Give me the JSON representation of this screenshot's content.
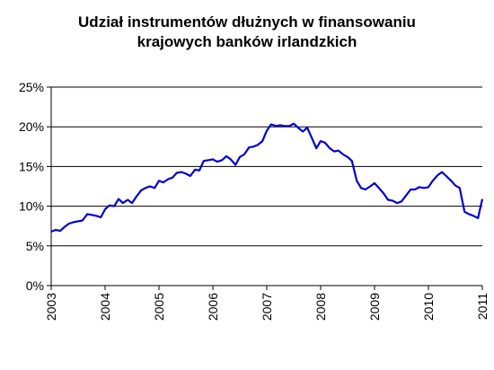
{
  "chart_data": {
    "type": "line",
    "title_lines": [
      "Udział instrumentów dłużnych w finansowaniu",
      "krajowych banków irlandzkich"
    ],
    "xlabel": "",
    "ylabel": "",
    "ylim": [
      0,
      25
    ],
    "xlim": [
      2003,
      2011
    ],
    "y_ticks": [
      0,
      5,
      10,
      15,
      20,
      25
    ],
    "y_tick_labels": [
      "0%",
      "5%",
      "10%",
      "15%",
      "20%",
      "25%"
    ],
    "x_ticks": [
      2003,
      2004,
      2005,
      2006,
      2007,
      2008,
      2009,
      2010,
      2011
    ],
    "x_tick_labels": [
      "2003",
      "2004",
      "2005",
      "2006",
      "2007",
      "2008",
      "2009",
      "2010",
      "2011"
    ],
    "grid": "horizontal",
    "line_color": "#0000cc",
    "series": [
      {
        "x": [
          2003.0,
          2003.08,
          2003.17,
          2003.25,
          2003.33,
          2003.42,
          2003.5,
          2003.58,
          2003.67,
          2003.75,
          2003.83,
          2003.92,
          2004.0,
          2004.08,
          2004.17,
          2004.25,
          2004.33,
          2004.42,
          2004.5,
          2004.58,
          2004.67,
          2004.75,
          2004.83,
          2004.92,
          2005.0,
          2005.08,
          2005.17,
          2005.25,
          2005.33,
          2005.42,
          2005.5,
          2005.58,
          2005.67,
          2005.75,
          2005.83,
          2005.92,
          2006.0,
          2006.08,
          2006.17,
          2006.25,
          2006.33,
          2006.42,
          2006.5,
          2006.58,
          2006.67,
          2006.75,
          2006.83,
          2006.92,
          2007.0,
          2007.08,
          2007.17,
          2007.25,
          2007.33,
          2007.42,
          2007.5,
          2007.58,
          2007.67,
          2007.75,
          2007.83,
          2007.92,
          2008.0,
          2008.08,
          2008.17,
          2008.25,
          2008.33,
          2008.42,
          2008.5,
          2008.58,
          2008.67,
          2008.75,
          2008.83,
          2008.92,
          2009.0,
          2009.08,
          2009.17,
          2009.25,
          2009.33,
          2009.42,
          2009.5,
          2009.58,
          2009.67,
          2009.75,
          2009.83,
          2009.92,
          2010.0,
          2010.08,
          2010.17,
          2010.25,
          2010.33,
          2010.42,
          2010.5,
          2010.58,
          2010.67,
          2010.75,
          2010.83,
          2010.92,
          2011.0
        ],
        "values": [
          6.8,
          7.0,
          6.9,
          7.4,
          7.8,
          8.0,
          8.1,
          8.2,
          9.0,
          8.9,
          8.8,
          8.6,
          9.6,
          10.1,
          10.0,
          10.9,
          10.4,
          10.8,
          10.4,
          11.2,
          12.0,
          12.3,
          12.5,
          12.3,
          13.2,
          13.0,
          13.4,
          13.6,
          14.2,
          14.3,
          14.1,
          13.8,
          14.6,
          14.5,
          15.7,
          15.8,
          15.9,
          15.6,
          15.8,
          16.3,
          15.9,
          15.2,
          16.2,
          16.5,
          17.4,
          17.5,
          17.7,
          18.2,
          19.5,
          20.3,
          20.1,
          20.2,
          20.1,
          20.1,
          20.4,
          19.9,
          19.4,
          19.9,
          18.7,
          17.3,
          18.2,
          18.0,
          17.3,
          16.9,
          17.0,
          16.5,
          16.2,
          15.7,
          13.2,
          12.3,
          12.1,
          12.5,
          12.9,
          12.3,
          11.6,
          10.8,
          10.7,
          10.4,
          10.6,
          11.3,
          12.1,
          12.1,
          12.4,
          12.3,
          12.4,
          13.2,
          13.9,
          14.3,
          13.8,
          13.2,
          12.6,
          12.3,
          9.3,
          9.0,
          8.8,
          8.5,
          10.9
        ]
      }
    ]
  }
}
